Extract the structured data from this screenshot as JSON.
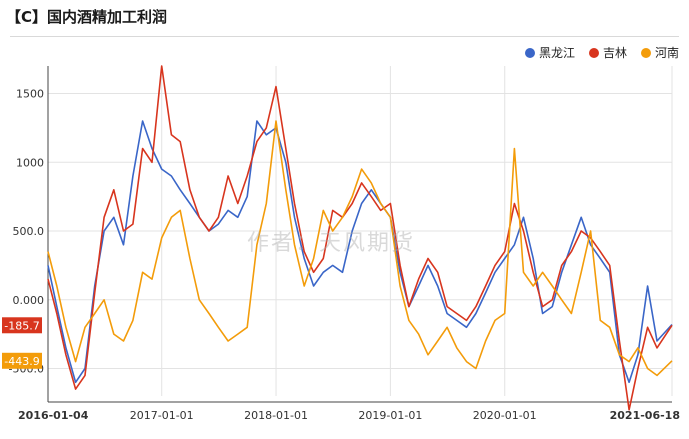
{
  "title": "【C】国内酒精加工利润",
  "watermark": "作者：天风期货",
  "colors": {
    "heilongjiang": "#3a66c8",
    "jilin": "#d8351e",
    "henan": "#f39c0a"
  },
  "legend": [
    {
      "name": "黑龙江",
      "color": "#3a66c8"
    },
    {
      "name": "吉林",
      "color": "#d8351e"
    },
    {
      "name": "河南",
      "color": "#f39c0a"
    }
  ],
  "chart_data": {
    "type": "line",
    "title": "【C】国内酒精加工利润",
    "xlabel": "",
    "ylabel": "",
    "ylim": [
      -700,
      1700
    ],
    "xlim": [
      "2016-01-04",
      "2021-06-18"
    ],
    "y_ticks": [
      "1500",
      "1000",
      "500.0",
      "0.000",
      "-500.0"
    ],
    "y_tick_values": [
      1500,
      1000,
      500,
      0,
      -500
    ],
    "x_ticks": [
      "2016-01-04",
      "2017-01-01",
      "2018-01-01",
      "2019-01-01",
      "2020-01-01",
      "2021-06-18"
    ],
    "last_value_labels": [
      {
        "series": "吉林",
        "text": "-185.7",
        "value": -185.7
      },
      {
        "series": "河南",
        "text": "-443.9",
        "value": -443.9
      }
    ],
    "grid": true,
    "legend_position": "top-right",
    "series": [
      {
        "name": "黑龙江",
        "points": [
          [
            "2016-01-04",
            250
          ],
          [
            "2016-02-01",
            -50
          ],
          [
            "2016-03-01",
            -350
          ],
          [
            "2016-04-01",
            -600
          ],
          [
            "2016-05-01",
            -500
          ],
          [
            "2016-06-01",
            100
          ],
          [
            "2016-07-01",
            500
          ],
          [
            "2016-08-01",
            600
          ],
          [
            "2016-09-01",
            400
          ],
          [
            "2016-10-01",
            900
          ],
          [
            "2016-11-01",
            1300
          ],
          [
            "2016-12-01",
            1100
          ],
          [
            "2017-01-01",
            950
          ],
          [
            "2017-02-01",
            900
          ],
          [
            "2017-03-01",
            800
          ],
          [
            "2017-04-01",
            700
          ],
          [
            "2017-05-01",
            600
          ],
          [
            "2017-06-01",
            500
          ],
          [
            "2017-07-01",
            550
          ],
          [
            "2017-08-01",
            650
          ],
          [
            "2017-09-01",
            600
          ],
          [
            "2017-10-01",
            750
          ],
          [
            "2017-11-01",
            1300
          ],
          [
            "2017-12-01",
            1200
          ],
          [
            "2018-01-01",
            1250
          ],
          [
            "2018-02-01",
            1000
          ],
          [
            "2018-03-01",
            600
          ],
          [
            "2018-04-01",
            300
          ],
          [
            "2018-05-01",
            100
          ],
          [
            "2018-06-01",
            200
          ],
          [
            "2018-07-01",
            250
          ],
          [
            "2018-08-01",
            200
          ],
          [
            "2018-09-01",
            500
          ],
          [
            "2018-10-01",
            700
          ],
          [
            "2018-11-01",
            800
          ],
          [
            "2018-12-01",
            700
          ],
          [
            "2019-01-01",
            600
          ],
          [
            "2019-02-01",
            200
          ],
          [
            "2019-03-01",
            -50
          ],
          [
            "2019-04-01",
            100
          ],
          [
            "2019-05-01",
            250
          ],
          [
            "2019-06-01",
            100
          ],
          [
            "2019-07-01",
            -100
          ],
          [
            "2019-08-01",
            -150
          ],
          [
            "2019-09-01",
            -200
          ],
          [
            "2019-10-01",
            -100
          ],
          [
            "2019-11-01",
            50
          ],
          [
            "2019-12-01",
            200
          ],
          [
            "2020-01-01",
            300
          ],
          [
            "2020-02-01",
            400
          ],
          [
            "2020-03-01",
            600
          ],
          [
            "2020-04-01",
            300
          ],
          [
            "2020-05-01",
            -100
          ],
          [
            "2020-06-01",
            -50
          ],
          [
            "2020-07-01",
            200
          ],
          [
            "2020-08-01",
            400
          ],
          [
            "2020-09-01",
            600
          ],
          [
            "2020-10-01",
            400
          ],
          [
            "2020-11-01",
            300
          ],
          [
            "2020-12-01",
            200
          ],
          [
            "2021-01-01",
            -400
          ],
          [
            "2021-02-01",
            -600
          ],
          [
            "2021-03-01",
            -400
          ],
          [
            "2021-04-01",
            100
          ],
          [
            "2021-05-01",
            -300
          ],
          [
            "2021-06-18",
            -180
          ]
        ]
      },
      {
        "name": "吉林",
        "points": [
          [
            "2016-01-04",
            150
          ],
          [
            "2016-02-01",
            -100
          ],
          [
            "2016-03-01",
            -400
          ],
          [
            "2016-04-01",
            -650
          ],
          [
            "2016-05-01",
            -550
          ],
          [
            "2016-06-01",
            50
          ],
          [
            "2016-07-01",
            600
          ],
          [
            "2016-08-01",
            800
          ],
          [
            "2016-09-01",
            500
          ],
          [
            "2016-10-01",
            550
          ],
          [
            "2016-11-01",
            1100
          ],
          [
            "2016-12-01",
            1000
          ],
          [
            "2017-01-01",
            1700
          ],
          [
            "2017-02-01",
            1200
          ],
          [
            "2017-03-01",
            1150
          ],
          [
            "2017-04-01",
            800
          ],
          [
            "2017-05-01",
            600
          ],
          [
            "2017-06-01",
            500
          ],
          [
            "2017-07-01",
            600
          ],
          [
            "2017-08-01",
            900
          ],
          [
            "2017-09-01",
            700
          ],
          [
            "2017-10-01",
            900
          ],
          [
            "2017-11-01",
            1150
          ],
          [
            "2017-12-01",
            1250
          ],
          [
            "2018-01-01",
            1550
          ],
          [
            "2018-02-01",
            1100
          ],
          [
            "2018-03-01",
            700
          ],
          [
            "2018-04-01",
            350
          ],
          [
            "2018-05-01",
            200
          ],
          [
            "2018-06-01",
            300
          ],
          [
            "2018-07-01",
            650
          ],
          [
            "2018-08-01",
            600
          ],
          [
            "2018-09-01",
            700
          ],
          [
            "2018-10-01",
            850
          ],
          [
            "2018-11-01",
            750
          ],
          [
            "2018-12-01",
            650
          ],
          [
            "2019-01-01",
            700
          ],
          [
            "2019-02-01",
            250
          ],
          [
            "2019-03-01",
            -50
          ],
          [
            "2019-04-01",
            150
          ],
          [
            "2019-05-01",
            300
          ],
          [
            "2019-06-01",
            200
          ],
          [
            "2019-07-01",
            -50
          ],
          [
            "2019-08-01",
            -100
          ],
          [
            "2019-09-01",
            -150
          ],
          [
            "2019-10-01",
            -50
          ],
          [
            "2019-11-01",
            100
          ],
          [
            "2019-12-01",
            250
          ],
          [
            "2020-01-01",
            350
          ],
          [
            "2020-02-01",
            700
          ],
          [
            "2020-03-01",
            500
          ],
          [
            "2020-04-01",
            200
          ],
          [
            "2020-05-01",
            -50
          ],
          [
            "2020-06-01",
            0
          ],
          [
            "2020-07-01",
            250
          ],
          [
            "2020-08-01",
            350
          ],
          [
            "2020-09-01",
            500
          ],
          [
            "2020-10-01",
            450
          ],
          [
            "2020-11-01",
            350
          ],
          [
            "2020-12-01",
            250
          ],
          [
            "2021-01-01",
            -300
          ],
          [
            "2021-02-01",
            -800
          ],
          [
            "2021-03-01",
            -500
          ],
          [
            "2021-04-01",
            -200
          ],
          [
            "2021-05-01",
            -350
          ],
          [
            "2021-06-18",
            -185.7
          ]
        ]
      },
      {
        "name": "河南",
        "points": [
          [
            "2016-01-04",
            350
          ],
          [
            "2016-02-01",
            100
          ],
          [
            "2016-03-01",
            -200
          ],
          [
            "2016-04-01",
            -450
          ],
          [
            "2016-05-01",
            -200
          ],
          [
            "2016-06-01",
            -100
          ],
          [
            "2016-07-01",
            0
          ],
          [
            "2016-08-01",
            -250
          ],
          [
            "2016-09-01",
            -300
          ],
          [
            "2016-10-01",
            -150
          ],
          [
            "2016-11-01",
            200
          ],
          [
            "2016-12-01",
            150
          ],
          [
            "2017-01-01",
            450
          ],
          [
            "2017-02-01",
            600
          ],
          [
            "2017-03-01",
            650
          ],
          [
            "2017-04-01",
            300
          ],
          [
            "2017-05-01",
            0
          ],
          [
            "2017-06-01",
            -100
          ],
          [
            "2017-07-01",
            -200
          ],
          [
            "2017-08-01",
            -300
          ],
          [
            "2017-09-01",
            -250
          ],
          [
            "2017-10-01",
            -200
          ],
          [
            "2017-11-01",
            400
          ],
          [
            "2017-12-01",
            700
          ],
          [
            "2018-01-01",
            1300
          ],
          [
            "2018-02-01",
            800
          ],
          [
            "2018-03-01",
            400
          ],
          [
            "2018-04-01",
            100
          ],
          [
            "2018-05-01",
            300
          ],
          [
            "2018-06-01",
            650
          ],
          [
            "2018-07-01",
            500
          ],
          [
            "2018-08-01",
            600
          ],
          [
            "2018-09-01",
            750
          ],
          [
            "2018-10-01",
            950
          ],
          [
            "2018-11-01",
            850
          ],
          [
            "2018-12-01",
            700
          ],
          [
            "2019-01-01",
            600
          ],
          [
            "2019-02-01",
            100
          ],
          [
            "2019-03-01",
            -150
          ],
          [
            "2019-04-01",
            -250
          ],
          [
            "2019-05-01",
            -400
          ],
          [
            "2019-06-01",
            -300
          ],
          [
            "2019-07-01",
            -200
          ],
          [
            "2019-08-01",
            -350
          ],
          [
            "2019-09-01",
            -450
          ],
          [
            "2019-10-01",
            -500
          ],
          [
            "2019-11-01",
            -300
          ],
          [
            "2019-12-01",
            -150
          ],
          [
            "2020-01-01",
            -100
          ],
          [
            "2020-02-01",
            1100
          ],
          [
            "2020-03-01",
            200
          ],
          [
            "2020-04-01",
            100
          ],
          [
            "2020-05-01",
            200
          ],
          [
            "2020-06-01",
            100
          ],
          [
            "2020-07-01",
            0
          ],
          [
            "2020-08-01",
            -100
          ],
          [
            "2020-09-01",
            200
          ],
          [
            "2020-10-01",
            500
          ],
          [
            "2020-11-01",
            -150
          ],
          [
            "2020-12-01",
            -200
          ],
          [
            "2021-01-01",
            -400
          ],
          [
            "2021-02-01",
            -450
          ],
          [
            "2021-03-01",
            -350
          ],
          [
            "2021-04-01",
            -500
          ],
          [
            "2021-05-01",
            -550
          ],
          [
            "2021-06-18",
            -443.9
          ]
        ]
      }
    ]
  }
}
